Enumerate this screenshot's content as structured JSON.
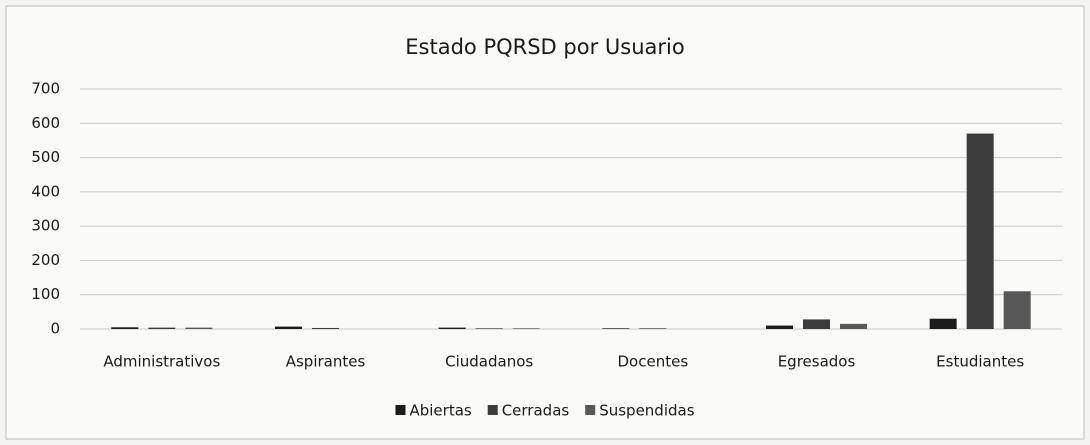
{
  "chart_data": {
    "type": "bar",
    "title": "Estado PQRSD por Usuario",
    "categories": [
      "Administrativos",
      "Aspirantes",
      "Ciudadanos",
      "Docentes",
      "Egresados",
      "Estudiantes"
    ],
    "series": [
      {
        "name": "Abiertas",
        "color": "#1c1c1c",
        "values": [
          5,
          7,
          4,
          2,
          10,
          30
        ]
      },
      {
        "name": "Cerradas",
        "color": "#3c3c3c",
        "values": [
          4,
          3,
          2,
          2,
          28,
          570
        ]
      },
      {
        "name": "Suspendidas",
        "color": "#585858",
        "values": [
          4,
          0,
          2,
          0,
          15,
          110
        ]
      }
    ],
    "ylim": [
      0,
      700
    ],
    "yticks": [
      0,
      100,
      200,
      300,
      400,
      500,
      600,
      700
    ],
    "grid": true,
    "legend": "bottom"
  }
}
